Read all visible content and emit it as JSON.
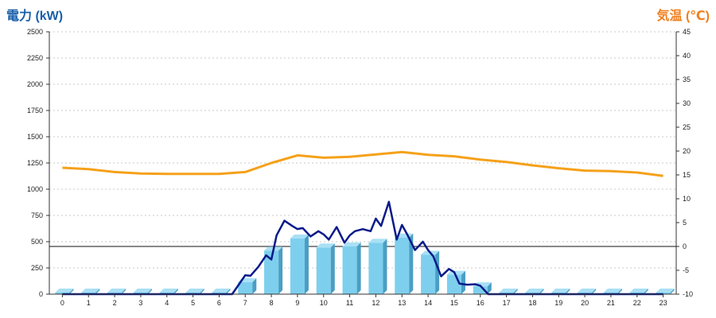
{
  "chart_data": {
    "type": "bar",
    "y_left_label": "電力 (kW)",
    "y_right_label": "気温 (℃)",
    "categories": [
      "0",
      "1",
      "2",
      "3",
      "4",
      "5",
      "6",
      "7",
      "8",
      "9",
      "10",
      "11",
      "12",
      "13",
      "14",
      "15",
      "16",
      "17",
      "18",
      "19",
      "20",
      "21",
      "22",
      "23"
    ],
    "y_left_ticks": [
      "0",
      "250",
      "500",
      "750",
      "1000",
      "1250",
      "1500",
      "1750",
      "2000",
      "2250",
      "2500"
    ],
    "y_right_ticks": [
      "-10",
      "-5",
      "0",
      "5",
      "10",
      "15",
      "20",
      "25",
      "30",
      "35",
      "40",
      "45"
    ],
    "ylim_left": [
      0,
      2500
    ],
    "ylim_right": [
      -10,
      45
    ],
    "grid": true,
    "series": [
      {
        "kind": "bar",
        "axis": "left",
        "color": "#7ecfee",
        "values": [
          15,
          15,
          15,
          15,
          15,
          15,
          15,
          115,
          415,
          530,
          445,
          455,
          490,
          540,
          375,
          185,
          75,
          15,
          15,
          15,
          15,
          15,
          15,
          15
        ]
      },
      {
        "kind": "line",
        "axis": "left",
        "color": "#0a1a8a",
        "x": [
          0,
          6.5,
          7,
          7.2,
          7.5,
          7.8,
          8,
          8.2,
          8.5,
          8.8,
          9,
          9.2,
          9.5,
          9.8,
          10,
          10.2,
          10.5,
          10.8,
          11,
          11.2,
          11.5,
          11.8,
          12,
          12.2,
          12.5,
          12.8,
          13,
          13.2,
          13.5,
          13.8,
          14,
          14.2,
          14.5,
          14.8,
          15,
          15.2,
          15.5,
          15.8,
          16,
          16.3,
          17,
          23
        ],
        "values": [
          0,
          0,
          180,
          175,
          260,
          370,
          330,
          560,
          700,
          650,
          620,
          630,
          550,
          600,
          570,
          520,
          640,
          490,
          560,
          600,
          620,
          600,
          720,
          650,
          880,
          520,
          660,
          570,
          420,
          500,
          420,
          360,
          170,
          240,
          210,
          100,
          90,
          95,
          80,
          0,
          0,
          0
        ]
      },
      {
        "kind": "line",
        "axis": "right",
        "color": "#f5a11a",
        "values": [
          16.5,
          16.2,
          15.6,
          15.3,
          15.2,
          15.2,
          15.2,
          15.6,
          17.5,
          19.1,
          18.6,
          18.8,
          19.3,
          19.8,
          19.2,
          18.9,
          18.2,
          17.7,
          17.0,
          16.4,
          15.9,
          15.8,
          15.5,
          14.8
        ]
      }
    ]
  }
}
